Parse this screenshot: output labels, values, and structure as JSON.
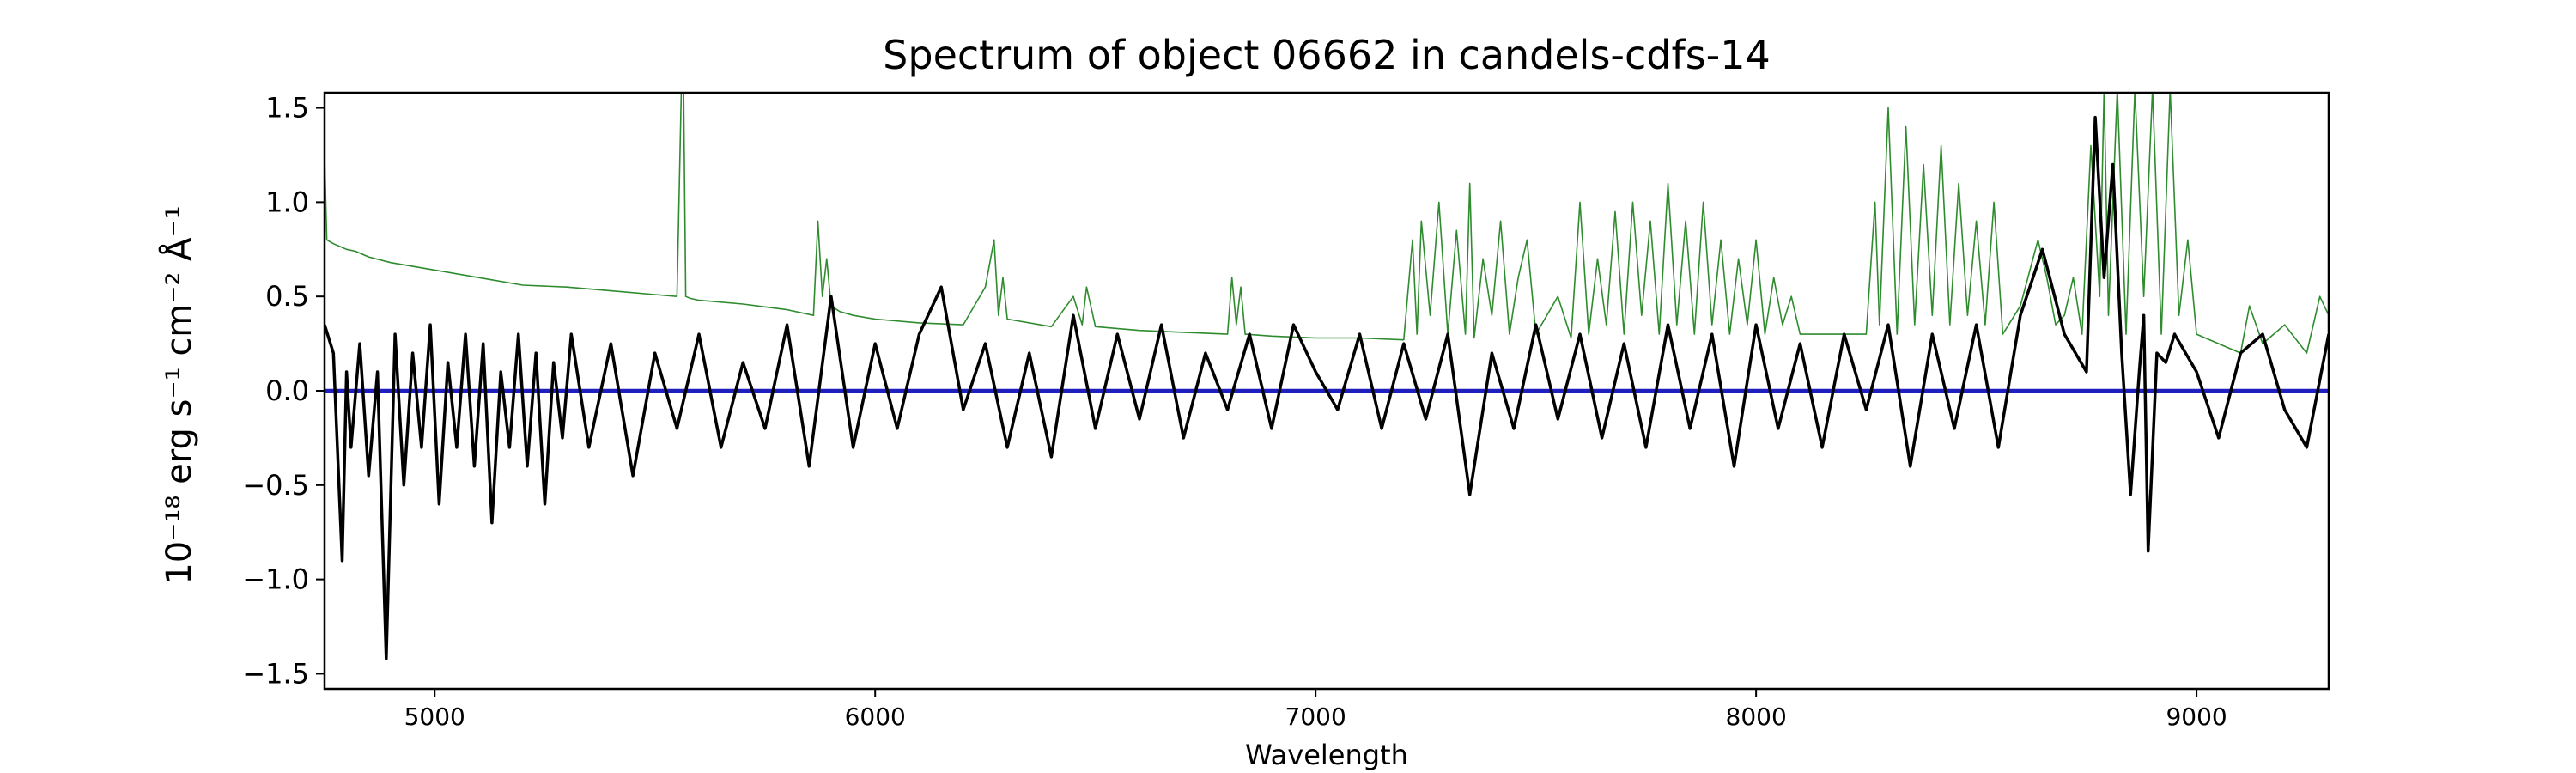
{
  "chart_data": {
    "type": "line",
    "title": "Spectrum of object 06662 in candels-cdfs-14",
    "xlabel": "Wavelength",
    "ylabel": "10⁻¹⁸ erg s⁻¹ cm⁻² Å⁻¹",
    "xlim": [
      4750,
      9300
    ],
    "ylim": [
      -1.58,
      1.58
    ],
    "grid": false,
    "x_ticks": [
      5000,
      6000,
      7000,
      8000,
      9000
    ],
    "y_ticks": [
      "-1.5",
      "-1.0",
      "-0.5",
      "0.0",
      "0.5",
      "1.0",
      "1.5"
    ],
    "series": [
      {
        "role": "flux",
        "color": "#000000",
        "x": [
          4750,
          4770,
          4790,
          4800,
          4810,
          4830,
          4850,
          4870,
          4890,
          4910,
          4930,
          4950,
          4970,
          4990,
          5010,
          5030,
          5050,
          5070,
          5090,
          5110,
          5130,
          5150,
          5170,
          5190,
          5210,
          5230,
          5250,
          5270,
          5290,
          5310,
          5350,
          5400,
          5450,
          5500,
          5550,
          5600,
          5650,
          5700,
          5750,
          5800,
          5850,
          5900,
          5950,
          6000,
          6050,
          6100,
          6150,
          6200,
          6250,
          6300,
          6350,
          6400,
          6450,
          6500,
          6550,
          6600,
          6650,
          6700,
          6750,
          6800,
          6850,
          6900,
          6950,
          7000,
          7050,
          7100,
          7150,
          7200,
          7250,
          7300,
          7350,
          7400,
          7450,
          7500,
          7550,
          7600,
          7650,
          7700,
          7750,
          7800,
          7850,
          7900,
          7950,
          8000,
          8050,
          8100,
          8150,
          8200,
          8250,
          8300,
          8350,
          8400,
          8450,
          8500,
          8550,
          8600,
          8650,
          8700,
          8750,
          8770,
          8790,
          8810,
          8830,
          8850,
          8870,
          8880,
          8890,
          8910,
          8930,
          8950,
          9000,
          9050,
          9100,
          9150,
          9200,
          9250,
          9300
        ],
        "values": [
          0.35,
          0.2,
          -0.9,
          0.1,
          -0.3,
          0.25,
          -0.45,
          0.1,
          -1.42,
          0.3,
          -0.5,
          0.2,
          -0.3,
          0.35,
          -0.6,
          0.15,
          -0.3,
          0.3,
          -0.4,
          0.25,
          -0.7,
          0.1,
          -0.3,
          0.3,
          -0.4,
          0.2,
          -0.6,
          0.15,
          -0.25,
          0.3,
          -0.3,
          0.25,
          -0.45,
          0.2,
          -0.2,
          0.3,
          -0.3,
          0.15,
          -0.2,
          0.35,
          -0.4,
          0.5,
          -0.3,
          0.25,
          -0.2,
          0.3,
          0.55,
          -0.1,
          0.25,
          -0.3,
          0.2,
          -0.35,
          0.4,
          -0.2,
          0.3,
          -0.15,
          0.35,
          -0.25,
          0.2,
          -0.1,
          0.3,
          -0.2,
          0.35,
          0.1,
          -0.1,
          0.3,
          -0.2,
          0.25,
          -0.15,
          0.3,
          -0.55,
          0.2,
          -0.2,
          0.35,
          -0.15,
          0.3,
          -0.25,
          0.25,
          -0.3,
          0.35,
          -0.2,
          0.3,
          -0.4,
          0.35,
          -0.2,
          0.25,
          -0.3,
          0.3,
          -0.1,
          0.35,
          -0.4,
          0.3,
          -0.2,
          0.35,
          -0.3,
          0.4,
          0.75,
          0.3,
          0.1,
          1.45,
          0.6,
          1.2,
          0.2,
          -0.55,
          0.1,
          0.4,
          -0.85,
          0.2,
          0.15,
          0.3,
          0.1,
          -0.25,
          0.2,
          0.3,
          -0.1,
          -0.3,
          0.3
        ]
      },
      {
        "role": "error",
        "color": "#2e8b2e",
        "x": [
          4750,
          4755,
          4770,
          4790,
          4800,
          4820,
          4850,
          4900,
          5000,
          5100,
          5200,
          5300,
          5400,
          5500,
          5550,
          5560,
          5565,
          5570,
          5580,
          5600,
          5700,
          5800,
          5860,
          5870,
          5880,
          5890,
          5900,
          5920,
          5950,
          6000,
          6100,
          6200,
          6250,
          6270,
          6280,
          6290,
          6300,
          6400,
          6450,
          6470,
          6480,
          6500,
          6600,
          6700,
          6800,
          6810,
          6820,
          6830,
          6840,
          6900,
          7000,
          7100,
          7200,
          7220,
          7230,
          7240,
          7260,
          7280,
          7300,
          7320,
          7340,
          7350,
          7360,
          7380,
          7400,
          7420,
          7440,
          7460,
          7480,
          7500,
          7550,
          7580,
          7600,
          7620,
          7640,
          7660,
          7680,
          7700,
          7720,
          7740,
          7760,
          7780,
          7800,
          7820,
          7840,
          7860,
          7880,
          7900,
          7920,
          7940,
          7960,
          7980,
          8000,
          8020,
          8040,
          8060,
          8080,
          8100,
          8150,
          8200,
          8250,
          8270,
          8280,
          8300,
          8320,
          8340,
          8360,
          8380,
          8400,
          8420,
          8440,
          8460,
          8480,
          8500,
          8520,
          8540,
          8560,
          8600,
          8640,
          8660,
          8680,
          8700,
          8720,
          8740,
          8760,
          8780,
          8790,
          8800,
          8820,
          8840,
          8860,
          8880,
          8900,
          8920,
          8940,
          8960,
          8980,
          9000,
          9050,
          9100,
          9120,
          9150,
          9200,
          9250,
          9280,
          9300
        ],
        "values": [
          1.25,
          0.8,
          0.78,
          0.76,
          0.75,
          0.74,
          0.71,
          0.68,
          0.64,
          0.6,
          0.56,
          0.55,
          0.53,
          0.51,
          0.5,
          1.6,
          1.6,
          0.5,
          0.49,
          0.48,
          0.46,
          0.43,
          0.4,
          0.9,
          0.5,
          0.7,
          0.45,
          0.42,
          0.4,
          0.38,
          0.36,
          0.35,
          0.55,
          0.8,
          0.4,
          0.6,
          0.38,
          0.34,
          0.5,
          0.35,
          0.55,
          0.34,
          0.32,
          0.31,
          0.3,
          0.6,
          0.35,
          0.55,
          0.3,
          0.29,
          0.28,
          0.28,
          0.27,
          0.8,
          0.3,
          0.9,
          0.4,
          1.0,
          0.3,
          0.85,
          0.3,
          1.1,
          0.28,
          0.7,
          0.4,
          0.9,
          0.3,
          0.6,
          0.8,
          0.3,
          0.5,
          0.28,
          1.0,
          0.3,
          0.7,
          0.35,
          0.95,
          0.3,
          1.0,
          0.4,
          0.9,
          0.3,
          1.1,
          0.35,
          0.9,
          0.3,
          1.0,
          0.35,
          0.8,
          0.3,
          0.7,
          0.35,
          0.8,
          0.3,
          0.6,
          0.35,
          0.5,
          0.3,
          0.3,
          0.3,
          0.3,
          1.0,
          0.35,
          1.5,
          0.3,
          1.4,
          0.35,
          1.2,
          0.4,
          1.3,
          0.35,
          1.1,
          0.4,
          0.9,
          0.35,
          1.0,
          0.3,
          0.45,
          0.8,
          0.6,
          0.35,
          0.4,
          0.6,
          0.3,
          1.3,
          0.5,
          1.6,
          0.4,
          1.6,
          0.3,
          1.6,
          0.5,
          1.6,
          0.3,
          1.6,
          0.4,
          0.8,
          0.3,
          0.25,
          0.2,
          0.45,
          0.25,
          0.35,
          0.2,
          0.5,
          0.4
        ]
      },
      {
        "role": "zero-level",
        "color": "#1f1fbf",
        "x": [
          4750,
          9300
        ],
        "values": [
          0.0,
          0.0
        ]
      }
    ]
  }
}
